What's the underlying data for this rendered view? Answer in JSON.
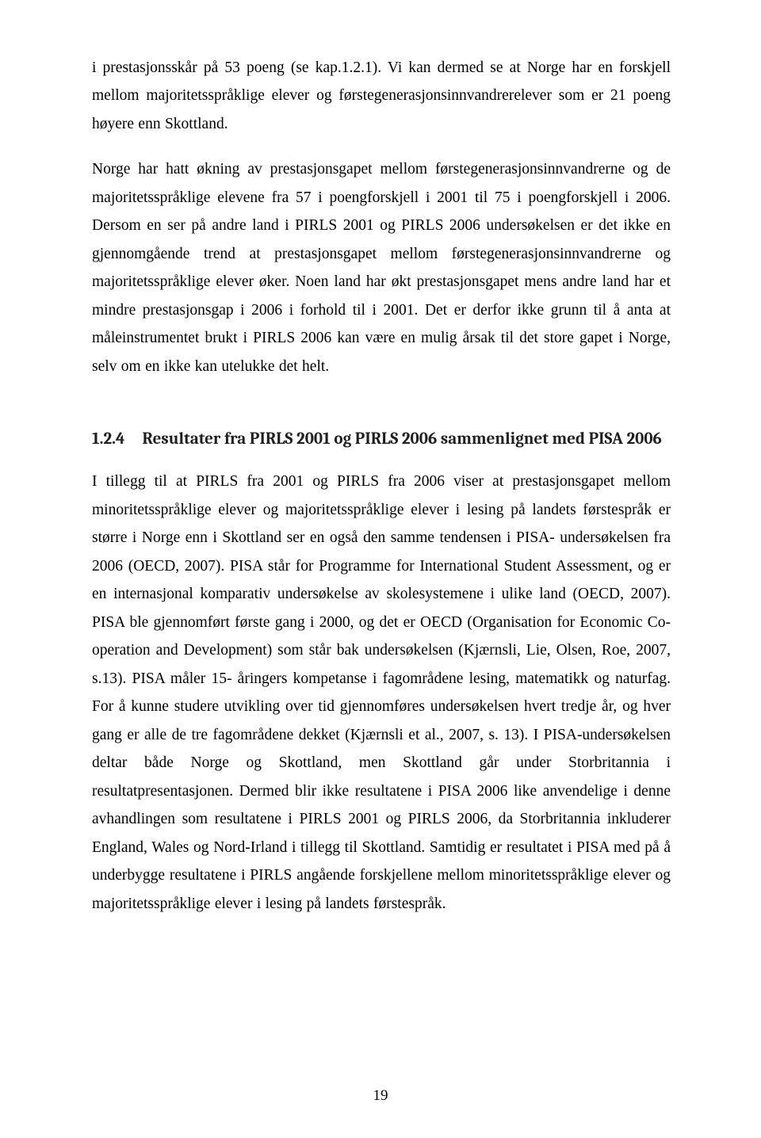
{
  "page": {
    "number": "19",
    "typography": {
      "body_font": "Times New Roman",
      "body_fontsize_pt": 12,
      "body_lineheight": 1.82,
      "body_color": "#000000",
      "heading_font": "Cambria",
      "heading_fontsize_pt": 13,
      "heading_weight": "bold",
      "heading_color": "#1f1f1f",
      "background_color": "#ffffff",
      "text_align": "justify"
    }
  },
  "paragraphs": {
    "p1": "i prestasjonsskår på 53 poeng (se kap.1.2.1). Vi kan dermed se at Norge har en forskjell mellom majoritetsspråklige elever og førstegenerasjonsinnvandrerelever som er 21 poeng høyere enn Skottland.",
    "p2": "Norge har hatt økning av prestasjonsgapet mellom førstegenerasjonsinnvandrerne og de majoritetsspråklige elevene fra 57 i poengforskjell i 2001 til 75 i poengforskjell i 2006. Dersom en ser på andre land i PIRLS 2001 og PIRLS 2006 undersøkelsen er det ikke en gjennomgående trend at prestasjonsgapet mellom førstegenerasjonsinnvandrerne og majoritetsspråklige elever øker. Noen land har økt prestasjonsgapet mens andre land har et mindre prestasjonsgap i 2006 i forhold til i 2001. Det er derfor ikke grunn til å anta at måleinstrumentet brukt i PIRLS 2006 kan være en mulig årsak til det store gapet i Norge, selv om en ikke kan utelukke det helt.",
    "p3": "I tillegg til at PIRLS fra 2001 og PIRLS fra 2006 viser at prestasjonsgapet mellom minoritetsspråklige elever og majoritetsspråklige elever i lesing på landets førstespråk er større i Norge enn i Skottland ser en også den samme tendensen i PISA- undersøkelsen fra 2006 (OECD, 2007).  PISA står for Programme for International Student Assessment, og er en internasjonal komparativ undersøkelse av skolesystemene i ulike land (OECD, 2007). PISA ble gjennomført første gang i 2000, og det er OECD (Organisation for Economic Co-operation and Development) som står bak undersøkelsen (Kjærnsli, Lie, Olsen, Roe, 2007, s.13). PISA måler 15- åringers kompetanse i fagområdene lesing, matematikk og naturfag. For å kunne studere utvikling over tid gjennomføres undersøkelsen hvert tredje år, og hver gang er alle de tre fagområdene dekket (Kjærnsli et al., 2007, s. 13). I PISA-undersøkelsen deltar både Norge og Skottland, men Skottland går under Storbritannia i resultatpresentasjonen. Dermed blir ikke resultatene i PISA 2006 like anvendelige i denne avhandlingen som resultatene i PIRLS 2001 og PIRLS 2006, da Storbritannia inkluderer England, Wales og Nord-Irland i tillegg til Skottland. Samtidig er resultatet i PISA med på å underbygge resultatene i PIRLS angående forskjellene mellom minoritetsspråklige elever og majoritetsspråklige elever i lesing på landets førstespråk."
  },
  "heading": {
    "number": "1.2.4",
    "title": "Resultater fra PIRLS 2001 og PIRLS 2006 sammenlignet med PISA 2006"
  }
}
